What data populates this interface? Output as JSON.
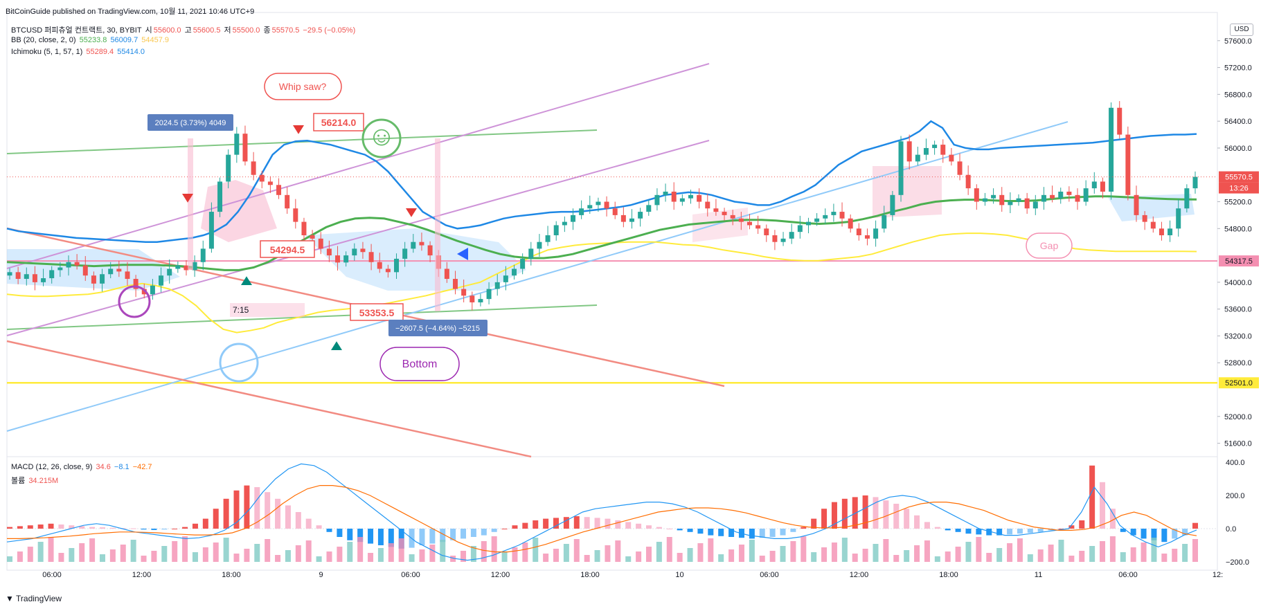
{
  "header": {
    "publish": "BitCoinGuide published on TradingView.com, 10월 11, 2021 10:46 UTC+9",
    "symbol_line": {
      "symbol": "BTCUSD 퍼피츄얼 컨트랙트, 30, BYBIT",
      "o_label": "시",
      "o": "55600.0",
      "h_label": "고",
      "h": "55600.5",
      "l_label": "저",
      "l": "55500.0",
      "c_label": "종",
      "c": "55570.5",
      "chg": "−29.5 (−0.05%)"
    },
    "bb_line": {
      "label": "BB (20, close, 2, 0)",
      "v1": "55233.8",
      "v2": "56009.7",
      "v3": "54457.9"
    },
    "ichi_line": {
      "label": "Ichimoku (5, 1, 57, 1)",
      "v1": "55289.4",
      "v2": "55414.0"
    },
    "macd_line": {
      "label": "MACD (12, 26, close, 9)",
      "v1": "34.6",
      "v2": "−8.1",
      "v3": "−42.7"
    },
    "vol_line": {
      "label": "볼륨",
      "v1": "34.215M"
    },
    "currency": "USD"
  },
  "colors": {
    "up": "#26a69a",
    "down": "#ef5350",
    "bb_mid": "#4caf50",
    "bb_up": "#1e88e5",
    "bb_low": "#ffeb3b",
    "pink_line": "#f48fb1",
    "yellow_line": "#ffeb3b"
  },
  "chart_data": [
    {
      "type": "candlestick",
      "title": "",
      "ylim": [
        51400,
        58000
      ],
      "y_ticks": [
        "57600.0",
        "57200.0",
        "56800.0",
        "56400.0",
        "56000.0",
        "55200.0",
        "54800.0",
        "54000.0",
        "53600.0",
        "53200.0",
        "52800.0",
        "52000.0",
        "51600.0"
      ],
      "x_ticks": [
        "06:00",
        "12:00",
        "18:00",
        "9",
        "06:00",
        "12:00",
        "18:00",
        "10",
        "06:00",
        "12:00",
        "18:00",
        "11",
        "06:00",
        "12:"
      ],
      "price_labels": {
        "last": "55570.5",
        "countdown": "13:26",
        "pink": "54317.5",
        "yellow": "52501.0"
      },
      "horizontal_levels": {
        "pink": 54317.5,
        "yellow": 52501.0
      },
      "annotations": {
        "whipsaw": "Whip saw?",
        "high_label": "56214.0",
        "mid_label": "54294.5",
        "low_label": "53353.5",
        "measure_up": "2024.5 (3.73%) 4049",
        "measure_down": "−2607.5 (−4.64%) −5215",
        "time_label": "7:15",
        "bottom": "Bottom",
        "gap": "Gap"
      },
      "series": [
        {
          "name": "close",
          "values": [
            54150,
            54050,
            54120,
            54000,
            54060,
            54180,
            54220,
            54300,
            54250,
            54100,
            53980,
            54120,
            54200,
            54160,
            54050,
            53900,
            53820,
            53950,
            54100,
            54200,
            54250,
            54180,
            54300,
            54500,
            55050,
            55500,
            55900,
            56214,
            55800,
            55600,
            55500,
            55450,
            55300,
            55100,
            54900,
            54700,
            54650,
            54500,
            54400,
            54294,
            54400,
            54500,
            54450,
            54300,
            54200,
            54150,
            54350,
            54500,
            54600,
            54550,
            54400,
            54200,
            54050,
            53900,
            53800,
            53700,
            53750,
            53900,
            54000,
            54100,
            54200,
            54350,
            54500,
            54600,
            54700,
            54850,
            54900,
            55000,
            55100,
            55150,
            55200,
            55100,
            55000,
            54900,
            54950,
            55050,
            55150,
            55300,
            55350,
            55200,
            55250,
            55300,
            55200,
            55100,
            55050,
            55000,
            54950,
            54900,
            54850,
            54800,
            54700,
            54600,
            54650,
            54750,
            54850,
            54900,
            54950,
            55000,
            55050,
            54950,
            54800,
            54700,
            54650,
            54800,
            55000,
            55300,
            56100,
            55800,
            55900,
            56000,
            56050,
            55900,
            55800,
            55600,
            55400,
            55200,
            55250,
            55300,
            55150,
            55200,
            55250,
            55100,
            55200,
            55300,
            55250,
            55350,
            55300,
            55200,
            55400,
            55500,
            55350,
            56600,
            56200,
            55300,
            55000,
            54900,
            54800,
            54700,
            54800,
            55100,
            55400,
            55570.5
          ]
        },
        {
          "name": "BB upper",
          "values": [
            54800,
            54760,
            54740,
            54720,
            54700,
            54680,
            54660,
            54650,
            54640,
            54630,
            54620,
            54610,
            54600,
            54600,
            54620,
            54640,
            54660,
            54700,
            54760,
            54860,
            55050,
            55300,
            55600,
            55900,
            56050,
            56100,
            56110,
            56080,
            56050,
            56000,
            55950,
            55900,
            55800,
            55650,
            55450,
            55250,
            55050,
            54950,
            54850,
            54800,
            54820,
            54850,
            54900,
            54950,
            54980,
            55000,
            55020,
            55040,
            55050,
            55050,
            55060,
            55080,
            55100,
            55120,
            55150,
            55200,
            55250,
            55300,
            55320,
            55340,
            55330,
            55300,
            55250,
            55200,
            55180,
            55150,
            55150,
            55200,
            55280,
            55350,
            55450,
            55600,
            55750,
            55850,
            55950,
            56000,
            56050,
            56100,
            56150,
            56250,
            56400,
            56300,
            56050,
            56000,
            55980,
            55980,
            56000,
            56010,
            56020,
            56030,
            56040,
            56050,
            56060,
            56070,
            56080,
            56100,
            56120,
            56140,
            56160,
            56180,
            56190,
            56200,
            56200,
            56210
          ]
        },
        {
          "name": "BB lower",
          "values": [
            53820,
            53800,
            53790,
            53790,
            53800,
            53810,
            53820,
            53850,
            53900,
            53950,
            53980,
            53950,
            53900,
            53800,
            53650,
            53450,
            53300,
            53250,
            53280,
            53320,
            53400,
            53450,
            53500,
            53550,
            53580,
            53600,
            53620,
            53650,
            53680,
            53720,
            53760,
            53800,
            53850,
            53900,
            53950,
            54000,
            54100,
            54200,
            54300,
            54400,
            54480,
            54520,
            54550,
            54570,
            54580,
            54590,
            54600,
            54600,
            54600,
            54580,
            54560,
            54550,
            54520,
            54480,
            54450,
            54420,
            54380,
            54350,
            54330,
            54320,
            54320,
            54340,
            54360,
            54380,
            54420,
            54480,
            54540,
            54600,
            54650,
            54700,
            54720,
            54730,
            54730,
            54720,
            54700,
            54660,
            54620,
            54580,
            54540,
            54500,
            54480,
            54470,
            54460,
            54460,
            54460,
            54460,
            54460,
            54460,
            54458
          ]
        },
        {
          "name": "BB basis",
          "values": [
            54300,
            54290,
            54280,
            54270,
            54260,
            54250,
            54240,
            54250,
            54260,
            54260,
            54260,
            54250,
            54240,
            54220,
            54200,
            54180,
            54180,
            54220,
            54300,
            54420,
            54580,
            54700,
            54820,
            54900,
            54950,
            54960,
            54950,
            54900,
            54850,
            54780,
            54700,
            54620,
            54550,
            54480,
            54420,
            54380,
            54360,
            54360,
            54380,
            54420,
            54480,
            54540,
            54600,
            54660,
            54720,
            54780,
            54820,
            54860,
            54880,
            54900,
            54920,
            54930,
            54930,
            54920,
            54900,
            54880,
            54870,
            54880,
            54900,
            54940,
            54990,
            55050,
            55100,
            55160,
            55200,
            55220,
            55230,
            55230,
            55220,
            55210,
            55210,
            55220,
            55240,
            55260,
            55270,
            55280,
            55280,
            55270,
            55260,
            55250,
            55240,
            55235,
            55233.8
          ]
        }
      ]
    },
    {
      "type": "bar",
      "title": "",
      "ylim": [
        -200,
        400
      ],
      "y_ticks": [
        "400.0",
        "200.0",
        "0.0",
        "−200.0"
      ],
      "series": [
        {
          "name": "MACD histogram",
          "values": [
            10,
            15,
            20,
            25,
            30,
            25,
            20,
            15,
            10,
            8,
            5,
            3,
            2,
            -5,
            -8,
            -5,
            0,
            10,
            30,
            60,
            120,
            180,
            230,
            260,
            250,
            220,
            180,
            140,
            100,
            60,
            20,
            -20,
            -50,
            -70,
            -80,
            -90,
            -100,
            -110,
            -120,
            -115,
            -100,
            -90,
            -80,
            -70,
            -60,
            -50,
            -40,
            -20,
            0,
            20,
            35,
            50,
            60,
            65,
            70,
            75,
            70,
            65,
            60,
            50,
            40,
            30,
            20,
            10,
            0,
            -10,
            -20,
            -30,
            -40,
            -45,
            -50,
            -55,
            -60,
            -55,
            -50,
            -40,
            -20,
            10,
            60,
            120,
            160,
            180,
            190,
            200,
            190,
            170,
            150,
            120,
            80,
            40,
            10,
            -10,
            -20,
            -30,
            -35,
            -40,
            -40,
            -35,
            -30,
            -25,
            -20,
            -10,
            0,
            20,
            50,
            380,
            280,
            120,
            -20,
            -40,
            -60,
            -70,
            -80,
            -60,
            -40,
            34.6
          ]
        },
        {
          "name": "MACD",
          "values": [
            -80,
            -70,
            -60,
            -40,
            -20,
            0,
            20,
            30,
            20,
            0,
            -20,
            -30,
            -40,
            -50,
            -60,
            -55,
            -40,
            -10,
            40,
            120,
            220,
            300,
            360,
            390,
            380,
            340,
            280,
            220,
            160,
            100,
            40,
            -20,
            -80,
            -120,
            -160,
            -180,
            -190,
            -180,
            -160,
            -130,
            -100,
            -60,
            -20,
            20,
            60,
            100,
            120,
            130,
            140,
            150,
            160,
            160,
            150,
            130,
            100,
            60,
            20,
            -20,
            -40,
            -50,
            -60,
            -60,
            -50,
            -30,
            0,
            40,
            80,
            120,
            160,
            190,
            200,
            190,
            160,
            120,
            80,
            40,
            0,
            -20,
            -40,
            -40,
            -30,
            -20,
            -10,
            0,
            100,
            250,
            150,
            20,
            -40,
            -80,
            -110,
            -80,
            -40,
            -8.1
          ]
        },
        {
          "name": "Signal",
          "values": [
            -60,
            -60,
            -58,
            -55,
            -50,
            -45,
            -38,
            -30,
            -25,
            -20,
            -20,
            -22,
            -25,
            -30,
            -34,
            -38,
            -38,
            -35,
            -25,
            0,
            40,
            90,
            150,
            200,
            240,
            260,
            260,
            250,
            230,
            200,
            160,
            120,
            80,
            40,
            0,
            -40,
            -80,
            -110,
            -130,
            -140,
            -140,
            -130,
            -115,
            -95,
            -70,
            -45,
            -20,
            0,
            20,
            40,
            60,
            80,
            100,
            110,
            120,
            125,
            125,
            120,
            110,
            95,
            75,
            55,
            35,
            20,
            10,
            5,
            5,
            10,
            25,
            45,
            70,
            100,
            130,
            150,
            160,
            160,
            150,
            130,
            110,
            80,
            50,
            30,
            10,
            0,
            -10,
            -10,
            -5,
            10,
            40,
            80,
            100,
            80,
            40,
            0,
            -30,
            -42.7
          ]
        }
      ]
    }
  ]
}
